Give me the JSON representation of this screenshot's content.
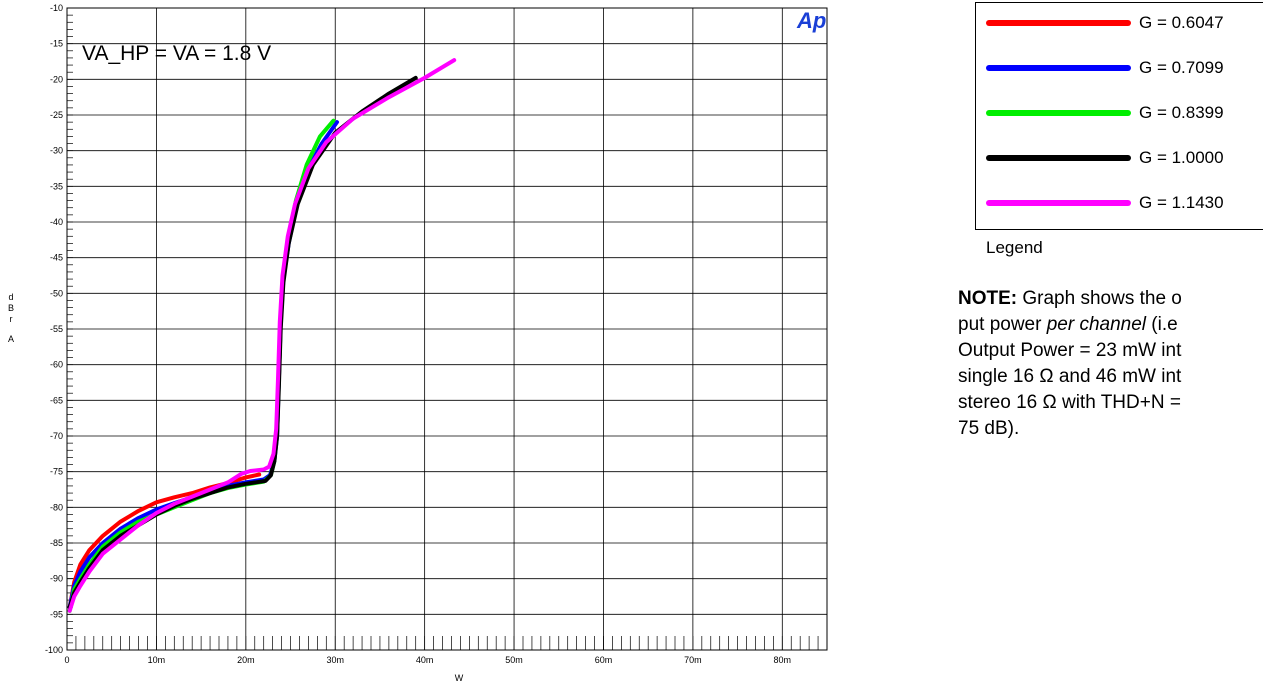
{
  "chart_data": {
    "type": "line",
    "annotation": "VA_HP = VA = 1.8 V",
    "logo": "Ap",
    "xlabel": "W",
    "ylabel": "dBrA",
    "xlim": [
      0,
      0.085
    ],
    "ylim": [
      -100,
      -10
    ],
    "xticks": [
      {
        "v": 0,
        "label": "0"
      },
      {
        "v": 0.01,
        "label": "10m"
      },
      {
        "v": 0.02,
        "label": "20m"
      },
      {
        "v": 0.03,
        "label": "30m"
      },
      {
        "v": 0.04,
        "label": "40m"
      },
      {
        "v": 0.05,
        "label": "50m"
      },
      {
        "v": 0.06,
        "label": "60m"
      },
      {
        "v": 0.07,
        "label": "70m"
      },
      {
        "v": 0.08,
        "label": "80m"
      }
    ],
    "yticks": [
      -10,
      -15,
      -20,
      -25,
      -30,
      -35,
      -40,
      -45,
      -50,
      -55,
      -60,
      -65,
      -70,
      -75,
      -80,
      -85,
      -90,
      -95,
      -100
    ],
    "grid": true,
    "series": [
      {
        "name": "G = 0.6047",
        "color": "#ff0000",
        "points": [
          [
            0.0003,
            -94
          ],
          [
            0.0008,
            -90.5
          ],
          [
            0.0015,
            -88
          ],
          [
            0.0025,
            -86
          ],
          [
            0.004,
            -84
          ],
          [
            0.006,
            -82
          ],
          [
            0.008,
            -80.5
          ],
          [
            0.01,
            -79.3
          ],
          [
            0.012,
            -78.6
          ],
          [
            0.014,
            -78
          ],
          [
            0.016,
            -77.2
          ],
          [
            0.018,
            -76.6
          ],
          [
            0.02,
            -75.8
          ],
          [
            0.0215,
            -75.4
          ]
        ]
      },
      {
        "name": "G = 0.7099",
        "color": "#0000ff",
        "points": [
          [
            0.0003,
            -94
          ],
          [
            0.0008,
            -91
          ],
          [
            0.0015,
            -89
          ],
          [
            0.0025,
            -87
          ],
          [
            0.004,
            -85
          ],
          [
            0.006,
            -83
          ],
          [
            0.008,
            -81.5
          ],
          [
            0.01,
            -80.3
          ],
          [
            0.012,
            -79.4
          ],
          [
            0.014,
            -78.6
          ],
          [
            0.016,
            -77.8
          ],
          [
            0.018,
            -77
          ],
          [
            0.02,
            -76.5
          ],
          [
            0.022,
            -76.1
          ],
          [
            0.0227,
            -75.5
          ],
          [
            0.0232,
            -73.5
          ],
          [
            0.0235,
            -70
          ],
          [
            0.0237,
            -62
          ],
          [
            0.0239,
            -54
          ],
          [
            0.0242,
            -48
          ],
          [
            0.0248,
            -43
          ],
          [
            0.0258,
            -37
          ],
          [
            0.027,
            -32.5
          ],
          [
            0.0285,
            -29
          ],
          [
            0.0302,
            -26
          ]
        ]
      },
      {
        "name": "G = 0.8399",
        "color": "#00ee00",
        "points": [
          [
            0.0003,
            -94.5
          ],
          [
            0.0008,
            -91.5
          ],
          [
            0.0015,
            -90
          ],
          [
            0.0025,
            -88
          ],
          [
            0.004,
            -85.5
          ],
          [
            0.006,
            -83.5
          ],
          [
            0.008,
            -82
          ],
          [
            0.01,
            -81
          ],
          [
            0.012,
            -80
          ],
          [
            0.014,
            -79
          ],
          [
            0.016,
            -78
          ],
          [
            0.018,
            -77.3
          ],
          [
            0.02,
            -76.8
          ],
          [
            0.022,
            -76.4
          ],
          [
            0.0228,
            -75.5
          ],
          [
            0.0232,
            -73.5
          ],
          [
            0.0235,
            -69
          ],
          [
            0.0237,
            -62
          ],
          [
            0.0239,
            -54
          ],
          [
            0.0242,
            -47.5
          ],
          [
            0.0248,
            -42
          ],
          [
            0.0256,
            -37
          ],
          [
            0.0268,
            -32
          ],
          [
            0.0283,
            -28
          ],
          [
            0.0298,
            -25.8
          ]
        ]
      },
      {
        "name": "G = 1.0000",
        "color": "#000000",
        "points": [
          [
            0.0003,
            -94
          ],
          [
            0.0008,
            -92
          ],
          [
            0.0015,
            -90.5
          ],
          [
            0.0025,
            -88.5
          ],
          [
            0.004,
            -86
          ],
          [
            0.006,
            -84
          ],
          [
            0.008,
            -82.5
          ],
          [
            0.01,
            -81
          ],
          [
            0.012,
            -79.8
          ],
          [
            0.014,
            -78.8
          ],
          [
            0.016,
            -78
          ],
          [
            0.018,
            -77.2
          ],
          [
            0.02,
            -76.7
          ],
          [
            0.0222,
            -76.3
          ],
          [
            0.0228,
            -75.5
          ],
          [
            0.0232,
            -73.5
          ],
          [
            0.0235,
            -70
          ],
          [
            0.0237,
            -63
          ],
          [
            0.0239,
            -55
          ],
          [
            0.0242,
            -48.5
          ],
          [
            0.0248,
            -43
          ],
          [
            0.0258,
            -37.5
          ],
          [
            0.0275,
            -32
          ],
          [
            0.03,
            -27.5
          ],
          [
            0.033,
            -24.5
          ],
          [
            0.036,
            -22
          ],
          [
            0.039,
            -19.8
          ]
        ]
      },
      {
        "name": "G = 1.1430",
        "color": "#ff00ff",
        "points": [
          [
            0.0003,
            -94.5
          ],
          [
            0.0008,
            -92.5
          ],
          [
            0.0015,
            -91
          ],
          [
            0.0025,
            -89
          ],
          [
            0.004,
            -86.5
          ],
          [
            0.006,
            -84.5
          ],
          [
            0.008,
            -82.5
          ],
          [
            0.01,
            -80.8
          ],
          [
            0.012,
            -79.5
          ],
          [
            0.014,
            -78.5
          ],
          [
            0.016,
            -77.5
          ],
          [
            0.018,
            -76.5
          ],
          [
            0.0195,
            -75.3
          ],
          [
            0.0205,
            -74.9
          ],
          [
            0.022,
            -74.7
          ],
          [
            0.0226,
            -74.3
          ],
          [
            0.0231,
            -72.5
          ],
          [
            0.0234,
            -69
          ],
          [
            0.0236,
            -62
          ],
          [
            0.0238,
            -54
          ],
          [
            0.0241,
            -47.5
          ],
          [
            0.0247,
            -42
          ],
          [
            0.0255,
            -37.5
          ],
          [
            0.027,
            -32.5
          ],
          [
            0.029,
            -28.8
          ],
          [
            0.032,
            -25.5
          ],
          [
            0.036,
            -22.5
          ],
          [
            0.04,
            -19.8
          ],
          [
            0.0433,
            -17.3
          ]
        ]
      }
    ]
  },
  "legend": {
    "caption": "Legend",
    "items": [
      {
        "label": "G = 0.6047",
        "color": "#ff0000"
      },
      {
        "label": "G = 0.7099",
        "color": "#0000ff"
      },
      {
        "label": "G = 0.8399",
        "color": "#00ee00"
      },
      {
        "label": "G = 1.0000",
        "color": "#000000"
      },
      {
        "label": "G = 1.1430",
        "color": "#ff00ff"
      }
    ]
  },
  "note": {
    "lead": "NOTE:",
    "text1": " Graph shows the o",
    "text2": "put power ",
    "emph": "per channel",
    "text3": " (i.e",
    "line3": "Output Power = 23 mW int",
    "line4": "single 16 Ω and 46 mW int",
    "line5": "stereo 16 Ω with THD+N =",
    "line6": "75 dB)."
  }
}
